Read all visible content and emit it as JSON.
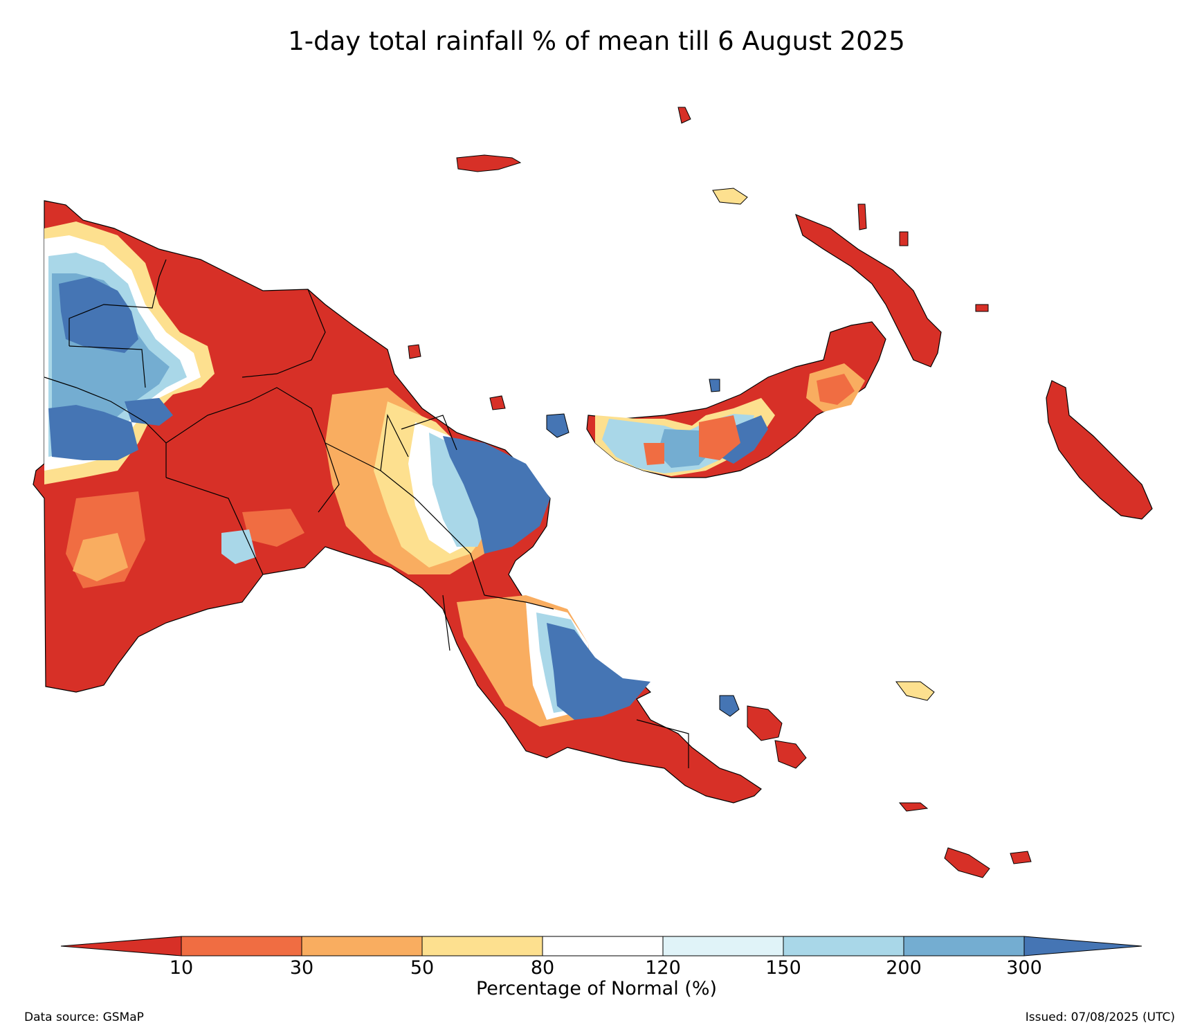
{
  "title": "1-day total rainfall % of mean till 6 August 2025",
  "colorbar": {
    "label": "Percentage of Normal (%)",
    "ticks": [
      "10",
      "30",
      "50",
      "80",
      "120",
      "150",
      "200",
      "300"
    ],
    "colors": [
      "#d73027",
      "#f06d42",
      "#f9ad60",
      "#fde08f",
      "#ffffff",
      "#e0f3f8",
      "#a9d7e8",
      "#74add1",
      "#4575b4"
    ]
  },
  "footer": {
    "data_source": "Data source: GSMaP",
    "issued": "Issued: 07/08/2025 (UTC)"
  },
  "legend_classes": [
    "<10",
    "10-30",
    "30-50",
    "50-80",
    "80-120",
    "120-150",
    "150-200",
    "200-300",
    ">300"
  ]
}
